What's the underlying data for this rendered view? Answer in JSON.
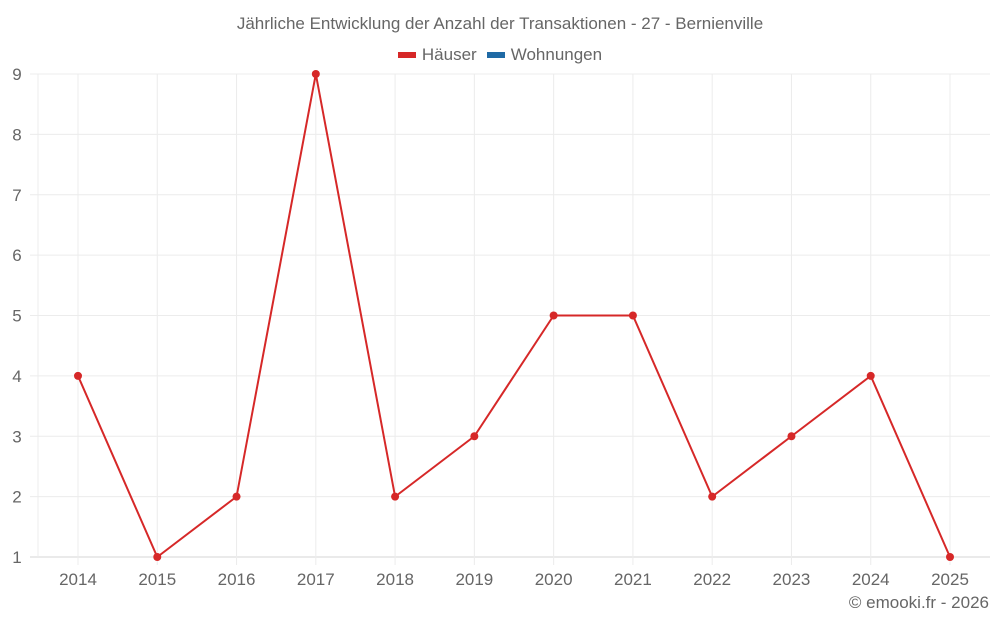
{
  "title": "Jährliche Entwicklung der Anzahl der Transaktionen - 27 - Bernienville",
  "legend": [
    {
      "label": "Häuser",
      "color": "#d62828"
    },
    {
      "label": "Wohnungen",
      "color": "#1f6aa5"
    }
  ],
  "credit": "© emooki.fr - 2026",
  "chart_data": {
    "type": "line",
    "title": "Jährliche Entwicklung der Anzahl der Transaktionen - 27 - Bernienville",
    "xlabel": "",
    "ylabel": "",
    "categories": [
      "2014",
      "2015",
      "2016",
      "2017",
      "2018",
      "2019",
      "2020",
      "2021",
      "2022",
      "2023",
      "2024",
      "2025"
    ],
    "series": [
      {
        "name": "Häuser",
        "color": "#d62828",
        "values": [
          4,
          1,
          2,
          9,
          2,
          3,
          5,
          5,
          2,
          3,
          4,
          1
        ]
      },
      {
        "name": "Wohnungen",
        "color": "#1f6aa5",
        "values": []
      }
    ],
    "yticks": [
      1,
      2,
      3,
      4,
      5,
      6,
      7,
      8,
      9
    ],
    "ylim": [
      1,
      9
    ],
    "grid": true,
    "legend_position": "top"
  }
}
